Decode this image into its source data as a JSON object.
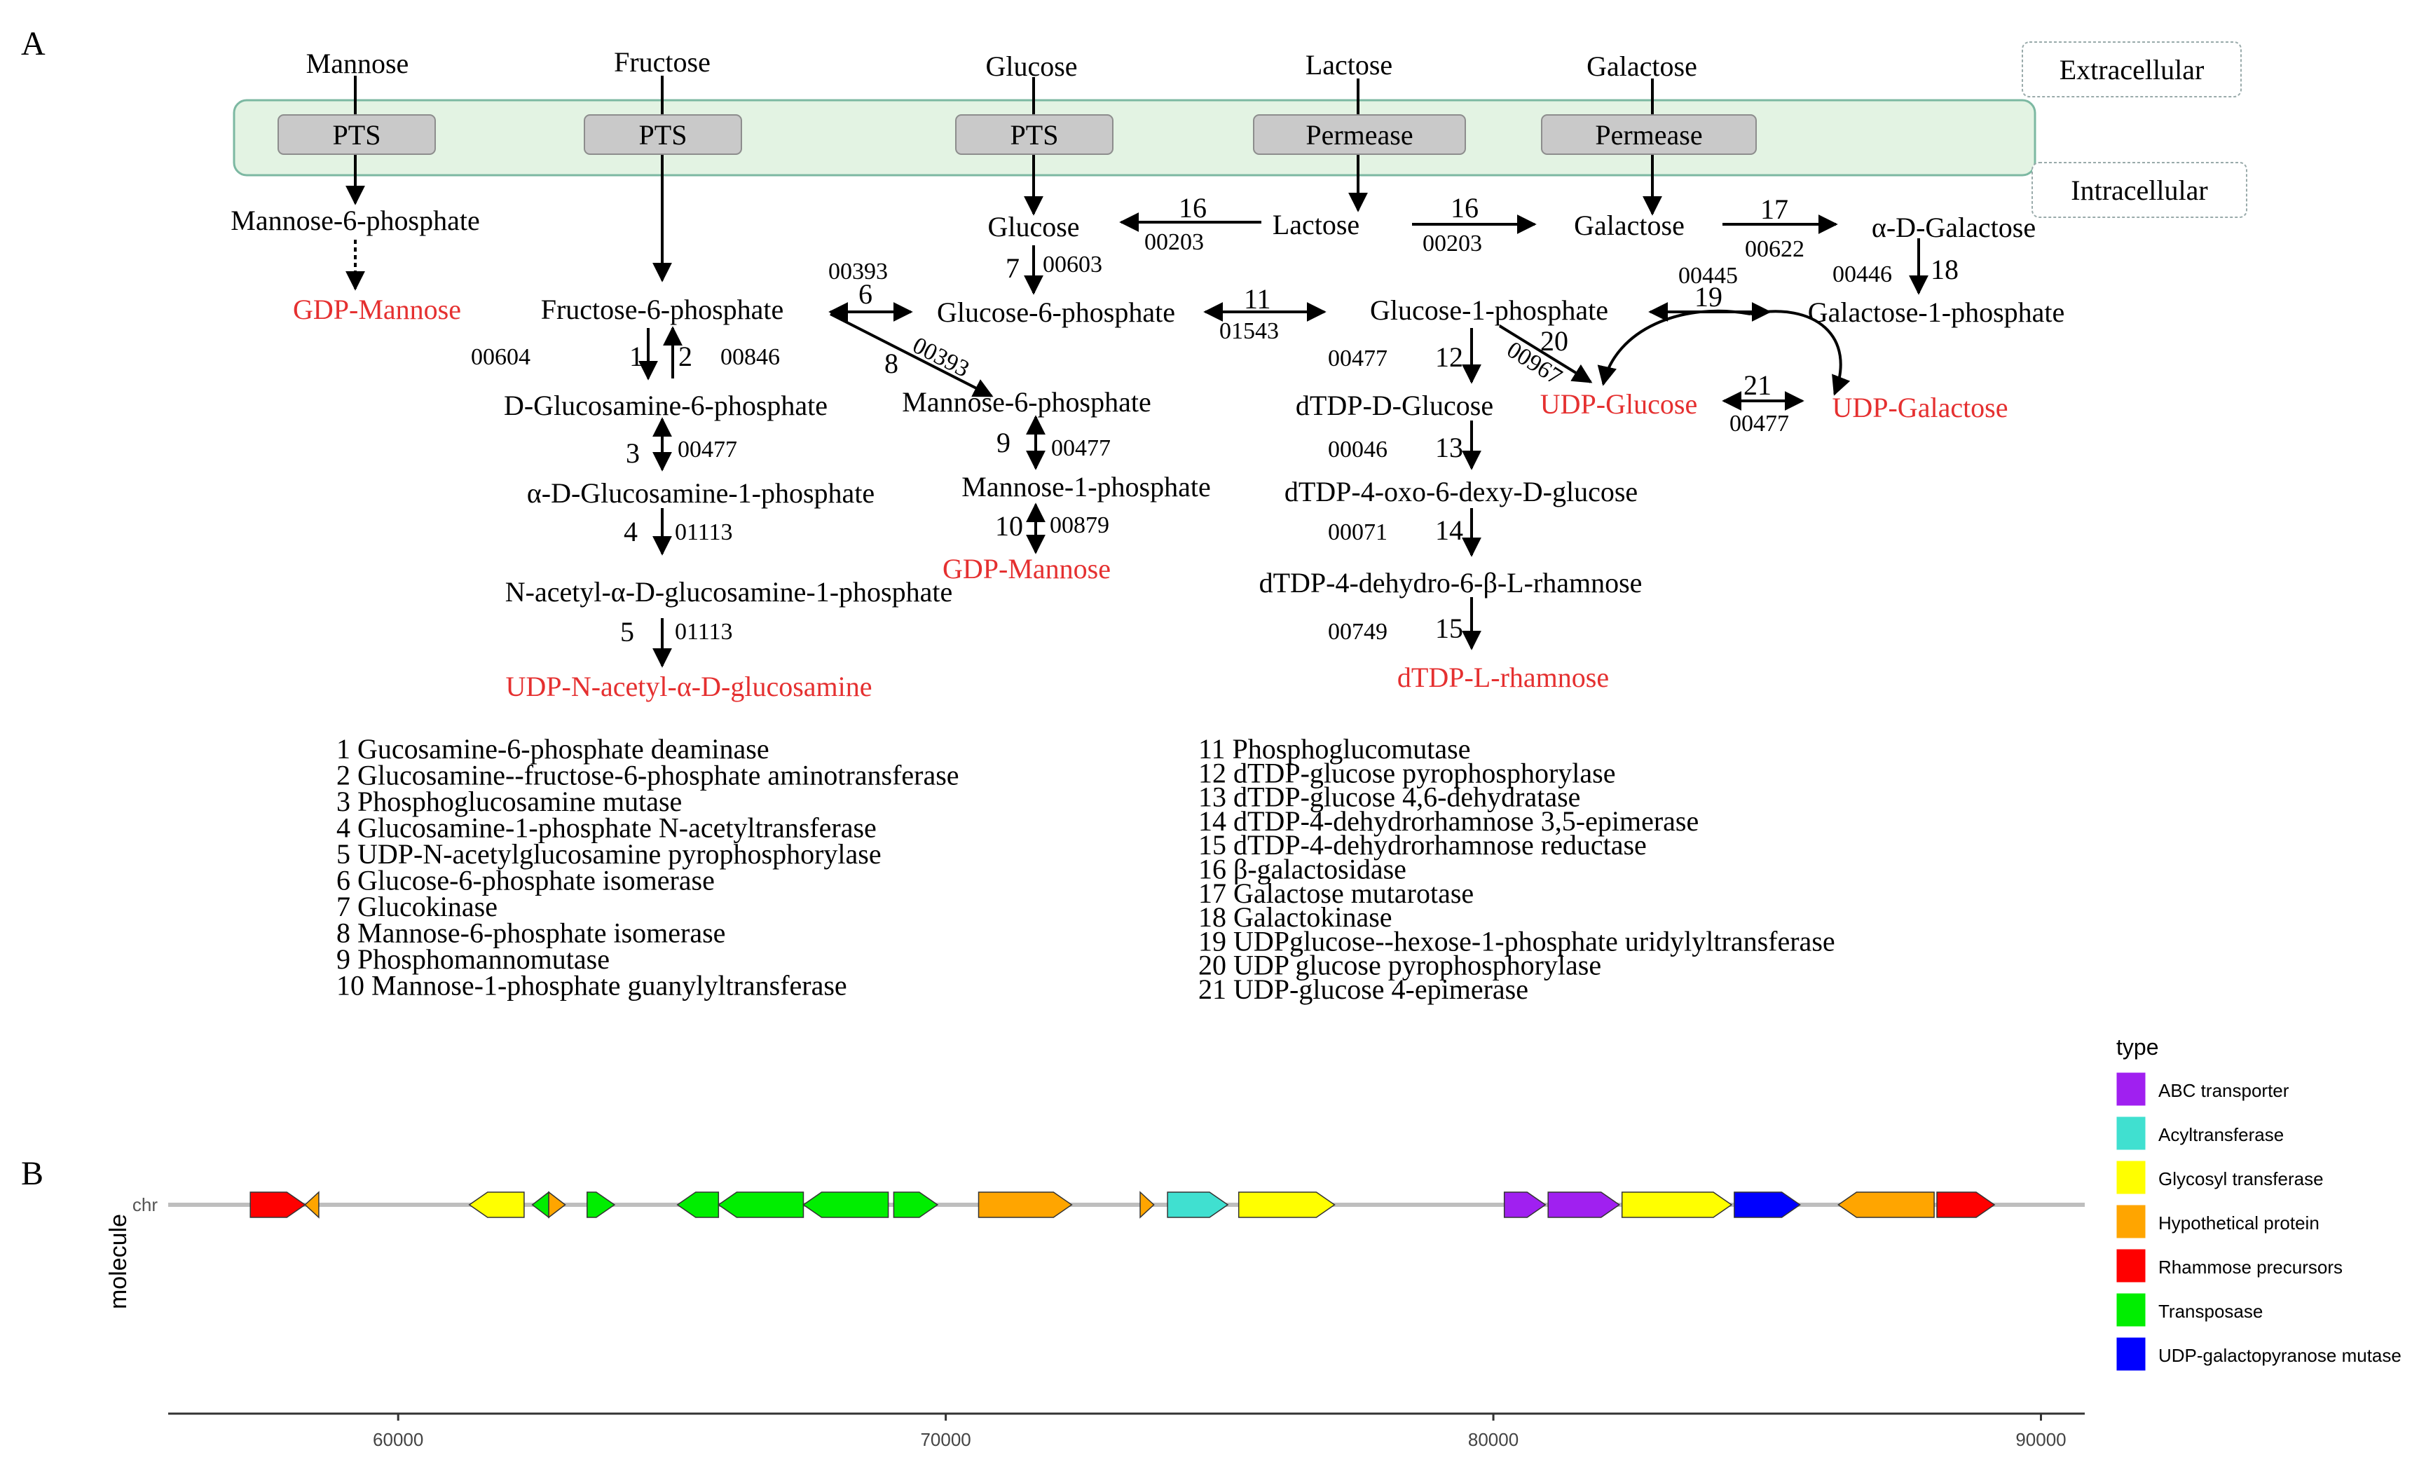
{
  "panel_a": {
    "label": "A",
    "compartments": {
      "extracellular": "Extracellular",
      "intracellular": "Intracellular"
    },
    "sugars": {
      "mannose": "Mannose",
      "fructose": "Fructose",
      "glucose": "Glucose",
      "lactose": "Lactose",
      "galactose": "Galactose"
    },
    "transporters": {
      "pts": "PTS",
      "permease": "Permease"
    },
    "metabolites": {
      "man6p_top": "Mannose-6-phosphate",
      "gdp_mannose_left": "GDP-Mannose",
      "fru6p": "Fructose-6-phosphate",
      "glcn6p": "D-Glucosamine-6-phosphate",
      "glcn1p": "α-D-Glucosamine-1-phosphate",
      "nacglc1p": "N-acetyl-α-D-glucosamine-1-phosphate",
      "udp_nacglc": "UDP-N-acetyl-α-D-glucosamine",
      "glucose_in": "Glucose",
      "glc6p": "Glucose-6-phosphate",
      "man6p_mid": "Mannose-6-phosphate",
      "man1p": "Mannose-1-phosphate",
      "gdp_mannose_mid": "GDP-Mannose",
      "lactose_in": "Lactose",
      "galactose_in": "Galactose",
      "a_d_galactose": "α-D-Galactose",
      "glc1p": "Glucose-1-phosphate",
      "gal1p": "Galactose-1-phosphate",
      "dtdp_glucose": "dTDP-D-Glucose",
      "udp_glucose": "UDP-Glucose",
      "udp_galactose": "UDP-Galactose",
      "dtdp_oxo": "dTDP-4-oxo-6-dexy-D-glucose",
      "dtdp_dehydro": "dTDP-4-dehydro-6-β-L-rhamnose",
      "dtdp_rhamnose": "dTDP-L-rhamnose"
    },
    "step_numbers": [
      "1",
      "2",
      "3",
      "4",
      "5",
      "6",
      "7",
      "8",
      "9",
      "10",
      "11",
      "12",
      "13",
      "14",
      "15",
      "16",
      "16",
      "17",
      "18",
      "19",
      "20",
      "21"
    ],
    "step_codes": {
      "c1": "00604",
      "c2": "00846",
      "c3": "00477",
      "c4": "01113",
      "c5": "01113",
      "c6": "00393",
      "c7": "00603",
      "c8": "00393",
      "c9": "00477",
      "c10": "00879",
      "c11": "01543",
      "c12": "00477",
      "c13": "00046",
      "c14": "00071",
      "c15": "00749",
      "c16a": "00203",
      "c16b": "00203",
      "c17": "00622",
      "c18": "00446",
      "c19": "00445",
      "c20": "00967",
      "c21": "00477"
    },
    "enzymes_left": [
      {
        "n": "1",
        "name": "Gucosamine-6-phosphate deaminase"
      },
      {
        "n": "2",
        "name": "Glucosamine--fructose-6-phosphate aminotransferase"
      },
      {
        "n": "3",
        "name": "Phosphoglucosamine mutase"
      },
      {
        "n": "4",
        "name": "Glucosamine-1-phosphate N-acetyltransferase"
      },
      {
        "n": "5",
        "name": "UDP-N-acetylglucosamine pyrophosphorylase"
      },
      {
        "n": "6",
        "name": "Glucose-6-phosphate isomerase"
      },
      {
        "n": "7",
        "name": "Glucokinase"
      },
      {
        "n": "8",
        "name": "Mannose-6-phosphate isomerase"
      },
      {
        "n": "9",
        "name": "Phosphomannomutase"
      },
      {
        "n": "10",
        "name": "Mannose-1-phosphate guanylyltransferase"
      }
    ],
    "enzymes_right": [
      {
        "n": "11",
        "name": "Phosphoglucomutase"
      },
      {
        "n": "12",
        "name": "dTDP-glucose pyrophosphorylase"
      },
      {
        "n": "13",
        "name": "dTDP-glucose 4,6-dehydratase"
      },
      {
        "n": "14",
        "name": "dTDP-4-dehydrorhamnose 3,5-epimerase"
      },
      {
        "n": "15",
        "name": "dTDP-4-dehydrorhamnose reductase"
      },
      {
        "n": "16",
        "name": "β-galactosidase"
      },
      {
        "n": "17",
        "name": "Galactose mutarotase"
      },
      {
        "n": "18",
        "name": "Galactokinase"
      },
      {
        "n": "19",
        "name": "UDPglucose--hexose-1-phosphate uridylyltransferase"
      },
      {
        "n": "20",
        "name": "UDP glucose pyrophosphorylase"
      },
      {
        "n": "21",
        "name": "UDP-glucose 4-epimerase"
      }
    ]
  },
  "panel_b": {
    "label": "B",
    "y_label": "molecule",
    "track_label": "chr",
    "axis_ticks": [
      60000,
      70000,
      80000,
      90000
    ],
    "axis_tick_labels": [
      "60000",
      "70000",
      "80000",
      "90000"
    ],
    "x_range": [
      55800,
      90800
    ],
    "legend_title": "type",
    "types": [
      {
        "name": "ABC transporter",
        "color": "#A020F0"
      },
      {
        "name": "Acyltransferase",
        "color": "#40E0D0"
      },
      {
        "name": "Glycosyl transferase",
        "color": "#FFFF00"
      },
      {
        "name": "Hypothetical protein",
        "color": "#FFA500"
      },
      {
        "name": "Rhammose precursors",
        "color": "#FF0000"
      },
      {
        "name": "Transposase",
        "color": "#00EE00"
      },
      {
        "name": "UDP-galactopyranose mutase",
        "color": "#0000FF"
      }
    ],
    "genes": [
      {
        "start": 57300,
        "end": 58300,
        "strand": "+",
        "type": "Rhammose precursors"
      },
      {
        "start": 58300,
        "end": 58550,
        "strand": "-",
        "type": "Hypothetical protein"
      },
      {
        "start": 61300,
        "end": 62300,
        "strand": "-",
        "type": "Glycosyl transferase"
      },
      {
        "start": 62450,
        "end": 62750,
        "strand": "-",
        "type": "Transposase"
      },
      {
        "start": 62750,
        "end": 63050,
        "strand": "+",
        "type": "Hypothetical protein"
      },
      {
        "start": 63450,
        "end": 63950,
        "strand": "+",
        "type": "Transposase"
      },
      {
        "start": 65100,
        "end": 65850,
        "strand": "-",
        "type": "Transposase"
      },
      {
        "start": 65850,
        "end": 67400,
        "strand": "-",
        "type": "Transposase"
      },
      {
        "start": 67400,
        "end": 68950,
        "strand": "-",
        "type": "Transposase"
      },
      {
        "start": 69050,
        "end": 69850,
        "strand": "+",
        "type": "Transposase"
      },
      {
        "start": 70600,
        "end": 72300,
        "strand": "+",
        "type": "Hypothetical protein"
      },
      {
        "start": 73550,
        "end": 73800,
        "strand": "+",
        "type": "Hypothetical protein"
      },
      {
        "start": 74050,
        "end": 75150,
        "strand": "+",
        "type": "Acyltransferase"
      },
      {
        "start": 75350,
        "end": 77100,
        "strand": "+",
        "type": "Glycosyl transferase"
      },
      {
        "start": 80200,
        "end": 80950,
        "strand": "+",
        "type": "ABC transporter"
      },
      {
        "start": 81000,
        "end": 82300,
        "strand": "+",
        "type": "ABC transporter"
      },
      {
        "start": 82350,
        "end": 84350,
        "strand": "+",
        "type": "Glycosyl transferase"
      },
      {
        "start": 84400,
        "end": 85600,
        "strand": "+",
        "type": "UDP-galactopyranose mutase"
      },
      {
        "start": 86300,
        "end": 88050,
        "strand": "-",
        "type": "Hypothetical protein"
      },
      {
        "start": 88100,
        "end": 89150,
        "strand": "+",
        "type": "Rhammose precursors"
      }
    ]
  }
}
